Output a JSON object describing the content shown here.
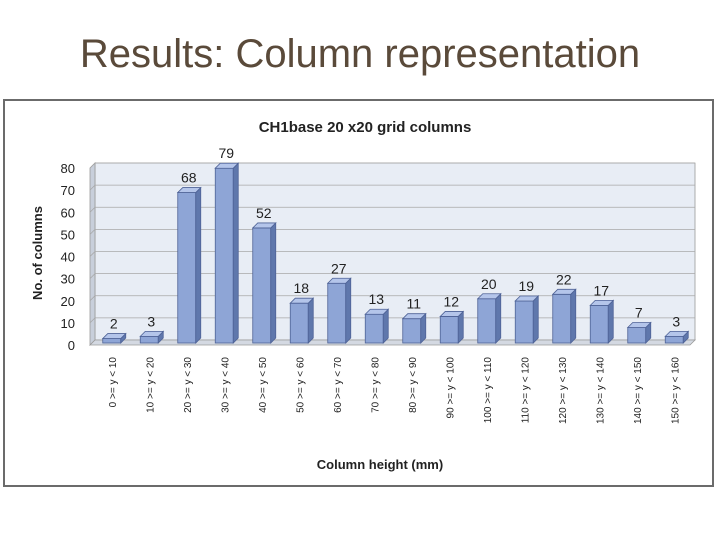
{
  "slide": {
    "title": "Results: Column representation"
  },
  "chart_data": {
    "type": "bar",
    "title": "CH1base 20 x20 grid columns",
    "xlabel": "Column height (mm)",
    "ylabel": "No. of columns",
    "ylim": [
      0,
      80
    ],
    "yticks": [
      0,
      10,
      20,
      30,
      40,
      50,
      60,
      70,
      80
    ],
    "grid": true,
    "legend": "none",
    "categories": [
      "0 >= y < 10",
      "10 >= y < 20",
      "20 >= y < 30",
      "30 >= y < 40",
      "40 >= y < 50",
      "50 >= y < 60",
      "60 >= y < 70",
      "70 >= y < 80",
      "80 >= y < 90",
      "90 >= y < 100",
      "100 >= y < 110",
      "110 >= y < 120",
      "120 >= y < 130",
      "130 >= y < 140",
      "140 >= y < 150",
      "150 >= y < 160"
    ],
    "values": [
      2,
      3,
      68,
      79,
      52,
      18,
      27,
      13,
      11,
      12,
      20,
      19,
      22,
      17,
      7,
      3
    ],
    "colors": {
      "bar_front": "#8ea5d6",
      "bar_side": "#5f77ac",
      "bar_top": "#b4c5ea",
      "plot_back": "#e8edf5"
    }
  }
}
